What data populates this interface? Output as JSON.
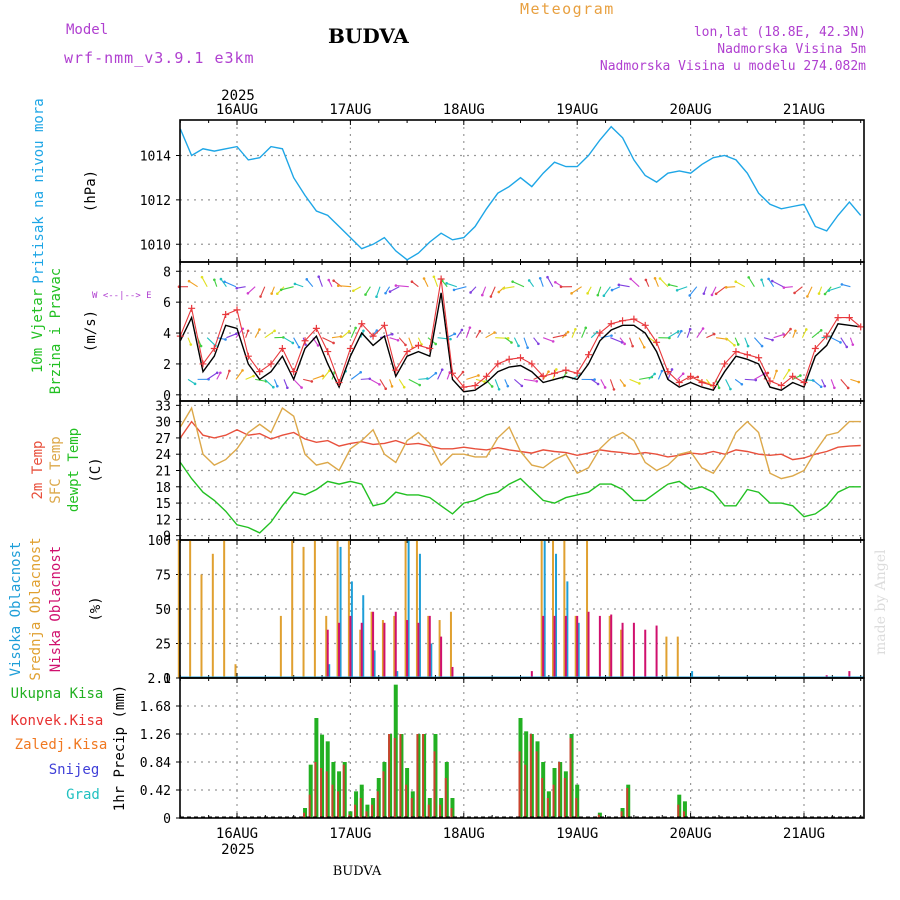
{
  "header": {
    "model_label": "Model",
    "model_name": "wrf-nmm_v3.9.1  e3km",
    "city": "BUDVA",
    "product": "Meteogram",
    "coords": "lon,lat (18.8E, 42.3N)",
    "elevation": "Nadmorska Visina 5m",
    "model_elevation": "Nadmorska Visina u modelu 274.082m",
    "footer_city": "BUDVA",
    "credit": "made by Angel"
  },
  "colors": {
    "pressure": "#1ea6e6",
    "wind": "#000000",
    "gust": "#e8383c",
    "t2m": "#e8503c",
    "sfc": "#dca84a",
    "dewpt": "#22c022",
    "high_cloud": "#1e9ed8",
    "mid_cloud": "#e0a030",
    "low_cloud": "#d0106e",
    "total_precip": "#22b022",
    "conv_precip": "#e83030",
    "frz_precip": "#f07820",
    "snow": "#4040d8",
    "graupel": "#20c0c0",
    "purple_text": "#b040d0",
    "orange_text": "#e8a040"
  },
  "time_axis": {
    "year": "2025",
    "days": [
      "16AUG",
      "17AUG",
      "18AUG",
      "19AUG",
      "20AUG",
      "21AUG"
    ]
  },
  "chart_data": [
    {
      "type": "line",
      "panel": "pressure",
      "title": "Pritisak na nivou mora",
      "ylabel": "(hPa)",
      "ylim": [
        1009.2,
        1015.6
      ],
      "yticks": [
        "1010",
        "1012",
        "1014"
      ],
      "ytick_values": [
        1010,
        1012,
        1014
      ],
      "x_days": [
        -0.5,
        -0.4,
        -0.3,
        -0.2,
        -0.1,
        0,
        0.1,
        0.2,
        0.3,
        0.4,
        0.5,
        0.6,
        0.7,
        0.8,
        0.9,
        1,
        1.1,
        1.2,
        1.3,
        1.4,
        1.5,
        1.6,
        1.7,
        1.8,
        1.9,
        2,
        2.1,
        2.2,
        2.3,
        2.4,
        2.5,
        2.6,
        2.7,
        2.8,
        2.9,
        3,
        3.1,
        3.2,
        3.3,
        3.4,
        3.5,
        3.6,
        3.7,
        3.8,
        3.9,
        4,
        4.1,
        4.2,
        4.3,
        4.4,
        4.5,
        4.6,
        4.7,
        4.8,
        4.9,
        5,
        5.1,
        5.2,
        5.3,
        5.4,
        5.5
      ],
      "series": [
        {
          "name": "MSLP",
          "values": [
            1015.2,
            1014.0,
            1014.3,
            1014.2,
            1014.3,
            1014.4,
            1013.8,
            1013.9,
            1014.4,
            1014.3,
            1013.0,
            1012.2,
            1011.5,
            1011.3,
            1010.8,
            1010.3,
            1009.8,
            1010.0,
            1010.3,
            1009.7,
            1009.3,
            1009.6,
            1010.1,
            1010.5,
            1010.2,
            1010.3,
            1010.8,
            1011.6,
            1012.3,
            1012.6,
            1013.0,
            1012.6,
            1013.2,
            1013.7,
            1013.5,
            1013.5,
            1014.0,
            1014.7,
            1015.3,
            1014.8,
            1013.8,
            1013.1,
            1012.8,
            1013.2,
            1013.3,
            1013.2,
            1013.6,
            1013.9,
            1014.0,
            1013.8,
            1013.2,
            1012.3,
            1011.8,
            1011.6,
            1011.7,
            1011.8,
            1010.8,
            1010.6,
            1011.3,
            1011.9,
            1011.3
          ]
        }
      ]
    },
    {
      "type": "line",
      "panel": "wind",
      "title": "10m Vjetar Brzina i Pravac",
      "ylabel": "(m/s)",
      "compass": "W <--|--> E",
      "ylim": [
        -0.4,
        8.6
      ],
      "yticks": [
        "0",
        "2",
        "4",
        "6",
        "8"
      ],
      "ytick_values": [
        0,
        2,
        4,
        6,
        8
      ],
      "x_days": [
        -0.5,
        -0.4,
        -0.3,
        -0.2,
        -0.1,
        0,
        0.1,
        0.2,
        0.3,
        0.4,
        0.5,
        0.6,
        0.7,
        0.8,
        0.9,
        1,
        1.1,
        1.2,
        1.3,
        1.4,
        1.5,
        1.6,
        1.7,
        1.8,
        1.9,
        2,
        2.1,
        2.2,
        2.3,
        2.4,
        2.5,
        2.6,
        2.7,
        2.8,
        2.9,
        3,
        3.1,
        3.2,
        3.3,
        3.4,
        3.5,
        3.6,
        3.7,
        3.8,
        3.9,
        4,
        4.1,
        4.2,
        4.3,
        4.4,
        4.5,
        4.6,
        4.7,
        4.8,
        4.9,
        5,
        5.1,
        5.2,
        5.3,
        5.4,
        5.5
      ],
      "series": [
        {
          "name": "Wind speed",
          "values": [
            3.5,
            5.0,
            1.5,
            2.5,
            4.5,
            4.3,
            2.0,
            1.0,
            1.5,
            2.5,
            1.0,
            3.0,
            3.8,
            2.0,
            0.5,
            2.5,
            4.0,
            3.2,
            3.8,
            1.2,
            2.5,
            2.8,
            2.5,
            6.6,
            1.0,
            0.2,
            0.3,
            0.8,
            1.5,
            1.8,
            1.9,
            1.5,
            0.8,
            1.0,
            1.2,
            1.0,
            2.0,
            3.5,
            4.2,
            4.5,
            4.5,
            4.0,
            2.8,
            1.0,
            0.5,
            0.8,
            0.5,
            0.3,
            1.5,
            2.5,
            2.3,
            2.0,
            0.5,
            0.3,
            0.8,
            0.5,
            2.5,
            3.2,
            4.6,
            4.5,
            4.4
          ]
        },
        {
          "name": "Gust",
          "values": [
            3.8,
            5.6,
            2.0,
            3.0,
            5.2,
            5.5,
            2.5,
            1.5,
            2.0,
            3.0,
            1.5,
            3.5,
            4.3,
            2.8,
            0.8,
            3.0,
            4.6,
            3.8,
            4.5,
            1.6,
            2.8,
            3.2,
            3.0,
            7.5,
            1.4,
            0.5,
            0.6,
            1.2,
            2.0,
            2.3,
            2.4,
            2.0,
            1.2,
            1.4,
            1.6,
            1.4,
            2.6,
            4.0,
            4.6,
            4.8,
            4.9,
            4.5,
            3.4,
            1.5,
            0.8,
            1.2,
            0.8,
            0.6,
            2.0,
            2.8,
            2.6,
            2.4,
            0.9,
            0.6,
            1.2,
            0.8,
            3.0,
            3.8,
            5.0,
            5.0,
            4.4
          ]
        }
      ]
    },
    {
      "type": "line",
      "panel": "temperature",
      "legend": [
        "2m Temp",
        "SFC Temp",
        "dewpt Temp"
      ],
      "ylabel": "(C)",
      "ylim": [
        8.2,
        33.8
      ],
      "yticks": [
        "9",
        "12",
        "15",
        "18",
        "21",
        "24",
        "27",
        "30",
        "33"
      ],
      "ytick_values": [
        9,
        12,
        15,
        18,
        21,
        24,
        27,
        30,
        33
      ],
      "x_days": [
        -0.5,
        -0.4,
        -0.3,
        -0.2,
        -0.1,
        0,
        0.1,
        0.2,
        0.3,
        0.4,
        0.5,
        0.6,
        0.7,
        0.8,
        0.9,
        1,
        1.1,
        1.2,
        1.3,
        1.4,
        1.5,
        1.6,
        1.7,
        1.8,
        1.9,
        2,
        2.1,
        2.2,
        2.3,
        2.4,
        2.5,
        2.6,
        2.7,
        2.8,
        2.9,
        3,
        3.1,
        3.2,
        3.3,
        3.4,
        3.5,
        3.6,
        3.7,
        3.8,
        3.9,
        4,
        4.1,
        4.2,
        4.3,
        4.4,
        4.5,
        4.6,
        4.7,
        4.8,
        4.9,
        5,
        5.1,
        5.2,
        5.3,
        5.4,
        5.5
      ],
      "series": [
        {
          "name": "2m Temp",
          "values": [
            27.0,
            30.0,
            27.5,
            27.0,
            27.5,
            28.5,
            27.5,
            27.8,
            26.8,
            27.5,
            28.0,
            26.8,
            26.2,
            26.5,
            25.5,
            26.0,
            26.3,
            25.8,
            26.0,
            26.5,
            25.8,
            26.0,
            25.5,
            25.0,
            25.0,
            25.3,
            25.0,
            24.8,
            25.2,
            24.8,
            24.5,
            24.2,
            24.8,
            24.5,
            24.3,
            23.8,
            24.2,
            24.8,
            24.5,
            24.3,
            24.0,
            24.3,
            24.0,
            23.5,
            23.8,
            24.2,
            24.0,
            24.5,
            24.0,
            24.8,
            24.5,
            24.0,
            23.8,
            24.0,
            23.0,
            23.3,
            24.0,
            24.5,
            25.3,
            25.5,
            25.6
          ]
        },
        {
          "name": "SFC Temp",
          "values": [
            29.0,
            32.5,
            24.0,
            22.0,
            23.0,
            25.0,
            28.0,
            29.5,
            28.0,
            32.5,
            31.0,
            24.0,
            22.0,
            22.5,
            21.0,
            25.0,
            26.5,
            28.5,
            24.0,
            22.5,
            26.5,
            28.0,
            26.0,
            22.0,
            24.0,
            24.0,
            23.5,
            23.5,
            27.0,
            29.0,
            24.5,
            22.0,
            21.5,
            23.0,
            24.0,
            20.5,
            21.5,
            25.0,
            27.0,
            28.0,
            26.5,
            22.5,
            21.0,
            22.0,
            24.0,
            24.5,
            21.5,
            20.5,
            23.5,
            28.0,
            30.0,
            28.0,
            20.5,
            19.5,
            20.0,
            21.0,
            24.5,
            27.5,
            28.0,
            30.0,
            30.0
          ]
        },
        {
          "name": "dewpt Temp",
          "values": [
            22.5,
            19.5,
            17.0,
            15.5,
            13.5,
            11.0,
            10.5,
            9.5,
            11.5,
            14.5,
            17.0,
            16.5,
            17.5,
            19.0,
            18.5,
            19.0,
            18.5,
            14.5,
            15.0,
            17.0,
            16.5,
            16.5,
            16.0,
            14.5,
            13.0,
            15.0,
            15.5,
            16.5,
            17.0,
            18.5,
            19.5,
            17.5,
            15.5,
            15.0,
            16.0,
            16.5,
            17.0,
            18.5,
            18.5,
            17.5,
            15.5,
            15.5,
            17.0,
            18.5,
            19.0,
            17.5,
            18.0,
            17.0,
            14.5,
            14.5,
            17.5,
            17.0,
            15.0,
            15.0,
            14.5,
            12.5,
            13.0,
            14.5,
            17.0,
            18.0,
            18.0
          ]
        }
      ]
    },
    {
      "type": "bar",
      "panel": "cloud",
      "legend": [
        "Visoka Oblacnost",
        "Srednja Oblacnost",
        "Niska Oblacnost"
      ],
      "ylabel": "(%)",
      "ylim": [
        0,
        100
      ],
      "yticks": [
        "0",
        "25",
        "50",
        "75",
        "100"
      ],
      "ytick_values": [
        0,
        25,
        50,
        75,
        100
      ],
      "x_days": [
        -0.5,
        -0.4,
        -0.3,
        -0.2,
        -0.1,
        0,
        0.1,
        0.2,
        0.3,
        0.4,
        0.5,
        0.6,
        0.7,
        0.8,
        0.9,
        1,
        1.1,
        1.2,
        1.3,
        1.4,
        1.5,
        1.6,
        1.7,
        1.8,
        1.9,
        2,
        2.1,
        2.2,
        2.3,
        2.4,
        2.5,
        2.6,
        2.7,
        2.8,
        2.9,
        3,
        3.1,
        3.2,
        3.3,
        3.4,
        3.5,
        3.6,
        3.7,
        3.8,
        3.9,
        4,
        4.1,
        4.2,
        4.3,
        4.4,
        4.5,
        4.6,
        4.7,
        4.8,
        4.9,
        5,
        5.1,
        5.2,
        5.3,
        5.4,
        5.5
      ],
      "series": [
        {
          "name": "Visoka Oblacnost",
          "values": [
            0,
            0,
            0,
            0,
            0,
            0,
            0,
            0,
            0,
            0,
            0,
            0,
            0,
            10,
            95,
            70,
            60,
            20,
            0,
            5,
            100,
            90,
            25,
            0,
            0,
            0,
            0,
            0,
            0,
            0,
            0,
            0,
            100,
            90,
            70,
            40,
            0,
            0,
            0,
            0,
            0,
            0,
            0,
            0,
            0,
            5,
            0,
            0,
            0,
            0,
            0,
            0,
            0,
            0,
            0,
            0,
            0,
            0,
            0,
            0,
            0
          ]
        },
        {
          "name": "Srednja Oblacnost",
          "values": [
            100,
            100,
            75,
            90,
            100,
            10,
            0,
            0,
            0,
            45,
            100,
            95,
            100,
            45,
            100,
            100,
            35,
            48,
            42,
            45,
            100,
            100,
            45,
            42,
            48,
            0,
            0,
            0,
            0,
            0,
            0,
            0,
            100,
            100,
            100,
            45,
            100,
            0,
            45,
            35,
            0,
            0,
            0,
            30,
            30,
            0,
            0,
            0,
            0,
            0,
            0,
            0,
            0,
            0,
            0,
            0,
            0,
            0,
            0,
            0,
            0
          ]
        },
        {
          "name": "Niska Oblacnost",
          "values": [
            0,
            0,
            0,
            0,
            0,
            0,
            0,
            0,
            0,
            0,
            0,
            0,
            0,
            35,
            40,
            45,
            40,
            48,
            40,
            48,
            42,
            40,
            45,
            30,
            8,
            0,
            0,
            0,
            0,
            0,
            0,
            5,
            45,
            45,
            45,
            45,
            48,
            45,
            46,
            40,
            40,
            35,
            38,
            0,
            0,
            0,
            0,
            0,
            0,
            0,
            0,
            0,
            0,
            0,
            0,
            0,
            0,
            2,
            0,
            5,
            0
          ]
        }
      ]
    },
    {
      "type": "bar",
      "panel": "precipitation",
      "legend": [
        "Ukupna Kisa",
        "Konvek.Kisa",
        "Zaledj.Kisa",
        "Snijeg",
        "Grad"
      ],
      "ylabel": "1hr Precip (mm)",
      "ylim": [
        0,
        2.1
      ],
      "yticks": [
        "0",
        "0.42",
        "0.84",
        "1.26",
        "1.68",
        "2.1"
      ],
      "ytick_values": [
        0,
        0.42,
        0.84,
        1.26,
        1.68,
        2.1
      ],
      "x_days": [
        0.6,
        0.65,
        0.7,
        0.75,
        0.8,
        0.85,
        0.9,
        0.95,
        1.0,
        1.05,
        1.1,
        1.15,
        1.2,
        1.25,
        1.3,
        1.35,
        1.4,
        1.45,
        1.5,
        1.55,
        1.6,
        1.65,
        1.7,
        1.75,
        1.8,
        1.85,
        1.9,
        2.5,
        2.55,
        2.6,
        2.65,
        2.7,
        2.75,
        2.8,
        2.85,
        2.9,
        2.95,
        3.0,
        3.2,
        3.4,
        3.45,
        3.9,
        3.95
      ],
      "series": [
        {
          "name": "Ukupna Kisa",
          "values": [
            0.15,
            0.8,
            1.5,
            1.25,
            1.15,
            0.84,
            0.7,
            0.84,
            0.1,
            0.4,
            0.5,
            0.2,
            0.3,
            0.6,
            0.84,
            1.26,
            2.0,
            1.26,
            0.75,
            0.4,
            1.26,
            1.26,
            0.3,
            1.26,
            0.3,
            0.84,
            0.3,
            1.5,
            1.3,
            1.26,
            1.15,
            0.84,
            0.4,
            0.75,
            0.84,
            0.7,
            1.26,
            0.5,
            0.08,
            0.15,
            0.5,
            0.35,
            0.25
          ]
        },
        {
          "name": "Konvek.Kisa",
          "values": [
            0.08,
            0.35,
            0.84,
            0.75,
            0.7,
            0.5,
            0.4,
            0.8,
            0.05,
            0.2,
            0.3,
            0.1,
            0.2,
            0.4,
            0.7,
            1.26,
            1.2,
            1.26,
            0.5,
            0.3,
            1.26,
            1.26,
            0.2,
            1.0,
            0.2,
            0.6,
            0.15,
            1.0,
            0.8,
            1.26,
            1.0,
            0.6,
            0.3,
            0.5,
            0.84,
            0.6,
            1.2,
            0.3,
            0.05,
            0.1,
            0.45,
            0.2,
            0.1
          ]
        }
      ]
    }
  ]
}
